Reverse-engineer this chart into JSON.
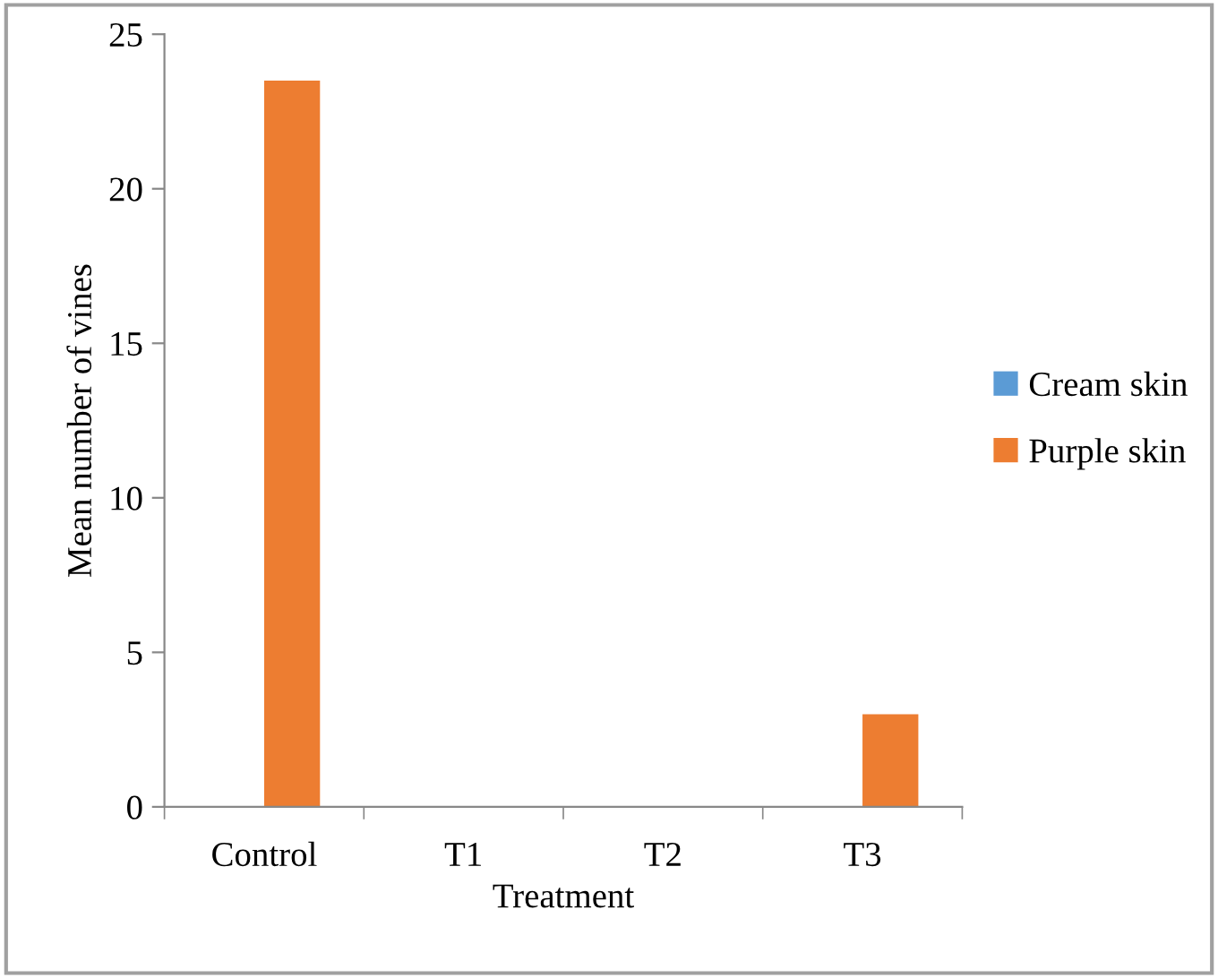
{
  "chart_data": {
    "type": "bar",
    "xlabel": "Treatment",
    "ylabel": "Mean number of vines",
    "categories": [
      "Control",
      "T1",
      "T2",
      "T3"
    ],
    "series": [
      {
        "name": "Cream skin",
        "color": "#5b9bd5",
        "values": [
          0,
          0,
          0,
          0
        ]
      },
      {
        "name": "Purple skin",
        "color": "#ed7d31",
        "values": [
          23.5,
          0,
          0,
          3
        ]
      }
    ],
    "ylim": [
      0,
      25
    ],
    "yticks": [
      0,
      5,
      10,
      15,
      20,
      25
    ],
    "grid": false,
    "legend": "right"
  }
}
